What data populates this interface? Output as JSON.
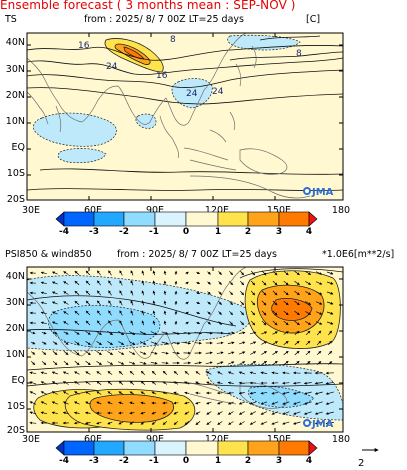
{
  "header": {
    "title": "Ensemble forecast ( 3 months mean : SEP-NOV )"
  },
  "panels": [
    {
      "id": "ts",
      "variable": "TS",
      "info": "from : 2025/ 8/ 7 00Z LT=25 days",
      "unit": "[C]",
      "contour_labels": [
        "16",
        "8",
        "24",
        "16",
        "24",
        "24",
        "8"
      ],
      "logo": "JMA"
    },
    {
      "id": "psi850",
      "variable": "PSI850 & wind850",
      "info": "from : 2025/ 8/ 7 00Z LT=25 days",
      "unit": "*1.0E6[m**2/s]",
      "logo": "JMA"
    }
  ],
  "map_extent": {
    "lon": [
      30,
      180
    ],
    "lat": [
      -20,
      45
    ]
  },
  "axes": {
    "lat_ticks": [
      "40N",
      "30N",
      "20N",
      "10N",
      "EQ",
      "10S",
      "20S"
    ],
    "lon_ticks": [
      "30E",
      "60E",
      "90E",
      "120E",
      "150E",
      "180"
    ]
  },
  "colorbar": {
    "labels": [
      "-4",
      "-3",
      "-2",
      "-1",
      "0",
      "1",
      "2",
      "3",
      "4"
    ],
    "colors": [
      "#0033cc",
      "#0066ff",
      "#22a8ff",
      "#8fdcff",
      "#d9f4ff",
      "#fff8d0",
      "#ffe34d",
      "#ffa31a",
      "#ff7a00",
      "#ee1111"
    ]
  },
  "wind_reference": {
    "label": "2"
  },
  "colors": {
    "header": "#e60000",
    "land": "#fff8d0",
    "coast": "#777777"
  },
  "icons": {
    "logo": "jma-logo-icon",
    "arrow": "reference-vector-arrow-icon"
  }
}
